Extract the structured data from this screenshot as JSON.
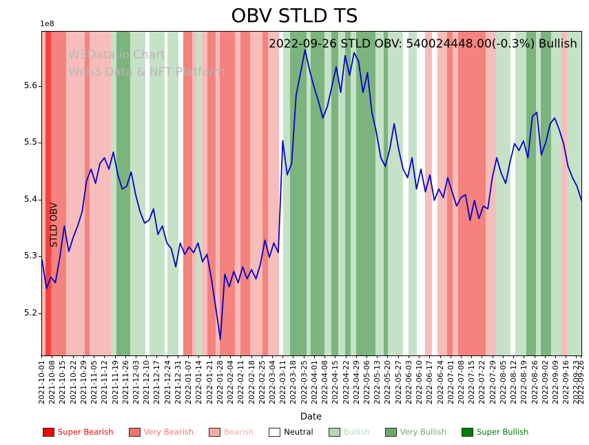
{
  "figure": {
    "title": "OBV STLD TS",
    "annotation": "2022-09-26 STLD OBV: 540024448.00(-0.3%) Bullish",
    "watermark_line1": "W3Data.io Chart",
    "watermark_line2": "Web3 Data & NFT Platform",
    "xlabel": "Date",
    "ylabel": "STLD OBV",
    "y_offset_label": "1e8"
  },
  "legend": {
    "items": [
      {
        "label": "Super Bearish",
        "color": "#fe0000"
      },
      {
        "label": "Very Bearish",
        "color": "#f4726d"
      },
      {
        "label": "Bearish",
        "color": "#f6aba7"
      },
      {
        "label": "Neutral",
        "color": "#ffffff",
        "text_color": "#000000"
      },
      {
        "label": "Bullish",
        "color": "#b4d8b4"
      },
      {
        "label": "Very Bullish",
        "color": "#6aab6c"
      },
      {
        "label": "Super Bullish",
        "color": "#007e00"
      }
    ]
  },
  "chart_data": {
    "type": "line",
    "title": "OBV STLD TS",
    "xlabel": "Date",
    "ylabel": "STLD OBV",
    "y_scale_factor": "1e8",
    "grid": false,
    "legend_position": "bottom",
    "ylim": [
      5.127,
      5.697
    ],
    "yticks": [
      5.2,
      5.3,
      5.4,
      5.5,
      5.6
    ],
    "x_start_date": "2021-10-01",
    "x_end_date": "2022-09-26",
    "x_total_days": 360,
    "xtick_labels": [
      "2021-10-01",
      "2021-10-08",
      "2021-10-15",
      "2021-10-22",
      "2021-10-29",
      "2021-11-05",
      "2021-11-12",
      "2021-11-19",
      "2021-11-26",
      "2021-12-03",
      "2021-12-10",
      "2021-12-17",
      "2021-12-24",
      "2021-12-31",
      "2022-01-07",
      "2022-01-14",
      "2022-01-21",
      "2022-01-28",
      "2022-02-04",
      "2022-02-11",
      "2022-02-18",
      "2022-02-25",
      "2022-03-04",
      "2022-03-11",
      "2022-03-18",
      "2022-03-25",
      "2022-04-01",
      "2022-04-08",
      "2022-04-15",
      "2022-04-22",
      "2022-04-29",
      "2022-05-06",
      "2022-05-13",
      "2022-05-20",
      "2022-05-27",
      "2022-06-03",
      "2022-06-10",
      "2022-06-17",
      "2022-06-24",
      "2022-07-01",
      "2022-07-08",
      "2022-07-15",
      "2022-07-22",
      "2022-07-29",
      "2022-08-05",
      "2022-08-12",
      "2022-08-19",
      "2022-08-26",
      "2022-09-02",
      "2022-09-09",
      "2022-09-16",
      "2022-09-23",
      "2022-09-26"
    ],
    "latest": {
      "date": "2022-09-26",
      "value": 540024448.0,
      "change_pct": -0.3,
      "signal": "Bullish"
    },
    "series": [
      {
        "name": "STLD OBV",
        "color": "#0000cd",
        "sampling": "evenly spaced 2021-10-01 to 2022-09-26",
        "values_1e8": [
          5.295,
          5.245,
          5.265,
          5.255,
          5.3,
          5.355,
          5.31,
          5.335,
          5.355,
          5.38,
          5.435,
          5.455,
          5.43,
          5.465,
          5.475,
          5.455,
          5.485,
          5.445,
          5.42,
          5.425,
          5.45,
          5.41,
          5.38,
          5.36,
          5.365,
          5.385,
          5.34,
          5.355,
          5.325,
          5.315,
          5.283,
          5.325,
          5.305,
          5.318,
          5.308,
          5.325,
          5.292,
          5.305,
          5.262,
          5.21,
          5.155,
          5.27,
          5.248,
          5.275,
          5.255,
          5.283,
          5.262,
          5.278,
          5.262,
          5.288,
          5.33,
          5.3,
          5.325,
          5.308,
          5.505,
          5.445,
          5.465,
          5.585,
          5.625,
          5.665,
          5.63,
          5.6,
          5.575,
          5.545,
          5.565,
          5.6,
          5.635,
          5.59,
          5.655,
          5.62,
          5.66,
          5.645,
          5.59,
          5.625,
          5.555,
          5.52,
          5.475,
          5.46,
          5.49,
          5.535,
          5.49,
          5.455,
          5.44,
          5.475,
          5.42,
          5.455,
          5.415,
          5.445,
          5.4,
          5.42,
          5.405,
          5.44,
          5.415,
          5.39,
          5.405,
          5.41,
          5.365,
          5.4,
          5.368,
          5.39,
          5.385,
          5.44,
          5.475,
          5.448,
          5.43,
          5.468,
          5.5,
          5.488,
          5.505,
          5.475,
          5.548,
          5.555,
          5.48,
          5.502,
          5.535,
          5.545,
          5.525,
          5.5,
          5.46,
          5.44,
          5.425,
          5.40024448
        ]
      }
    ],
    "band_colors": {
      "super_bearish": "#f94040",
      "very_bearish": "#f5827d",
      "bearish": "#f7bdba",
      "neutral": "#ffffff",
      "bullish": "#c6e2c6",
      "very_bullish": "#7cb47d",
      "super_bullish": "#2e8b2e"
    },
    "bands": [
      [
        0.0,
        0.007,
        "bearish"
      ],
      [
        0.007,
        0.017,
        "super_bearish"
      ],
      [
        0.017,
        0.045,
        "very_bearish"
      ],
      [
        0.045,
        0.079,
        "bearish"
      ],
      [
        0.079,
        0.088,
        "very_bearish"
      ],
      [
        0.088,
        0.128,
        "bearish"
      ],
      [
        0.128,
        0.138,
        "bullish"
      ],
      [
        0.138,
        0.163,
        "very_bullish"
      ],
      [
        0.163,
        0.192,
        "bullish"
      ],
      [
        0.192,
        0.199,
        "neutral"
      ],
      [
        0.199,
        0.227,
        "bullish"
      ],
      [
        0.227,
        0.232,
        "neutral"
      ],
      [
        0.232,
        0.253,
        "bullish"
      ],
      [
        0.253,
        0.262,
        "neutral"
      ],
      [
        0.262,
        0.278,
        "very_bearish"
      ],
      [
        0.278,
        0.286,
        "bearish"
      ],
      [
        0.286,
        0.296,
        "bullish"
      ],
      [
        0.296,
        0.306,
        "bearish"
      ],
      [
        0.306,
        0.322,
        "very_bearish"
      ],
      [
        0.322,
        0.329,
        "bearish"
      ],
      [
        0.329,
        0.358,
        "very_bearish"
      ],
      [
        0.358,
        0.368,
        "bearish"
      ],
      [
        0.368,
        0.386,
        "very_bearish"
      ],
      [
        0.386,
        0.409,
        "bearish"
      ],
      [
        0.409,
        0.419,
        "very_bearish"
      ],
      [
        0.419,
        0.439,
        "bearish"
      ],
      [
        0.439,
        0.447,
        "neutral"
      ],
      [
        0.447,
        0.46,
        "bullish"
      ],
      [
        0.46,
        0.49,
        "very_bullish"
      ],
      [
        0.49,
        0.498,
        "bullish"
      ],
      [
        0.498,
        0.524,
        "very_bullish"
      ],
      [
        0.524,
        0.536,
        "bullish"
      ],
      [
        0.536,
        0.549,
        "very_bullish"
      ],
      [
        0.549,
        0.562,
        "bullish"
      ],
      [
        0.562,
        0.572,
        "very_bullish"
      ],
      [
        0.572,
        0.582,
        "bullish"
      ],
      [
        0.582,
        0.618,
        "very_bullish"
      ],
      [
        0.618,
        0.633,
        "bullish"
      ],
      [
        0.633,
        0.641,
        "very_bullish"
      ],
      [
        0.641,
        0.669,
        "bullish"
      ],
      [
        0.669,
        0.679,
        "neutral"
      ],
      [
        0.679,
        0.695,
        "bullish"
      ],
      [
        0.695,
        0.71,
        "neutral"
      ],
      [
        0.71,
        0.723,
        "bearish"
      ],
      [
        0.723,
        0.733,
        "neutral"
      ],
      [
        0.733,
        0.751,
        "bearish"
      ],
      [
        0.751,
        0.761,
        "very_bearish"
      ],
      [
        0.761,
        0.771,
        "bearish"
      ],
      [
        0.771,
        0.822,
        "very_bearish"
      ],
      [
        0.822,
        0.842,
        "bearish"
      ],
      [
        0.842,
        0.868,
        "bullish"
      ],
      [
        0.868,
        0.877,
        "neutral"
      ],
      [
        0.877,
        0.898,
        "bullish"
      ],
      [
        0.898,
        0.916,
        "very_bullish"
      ],
      [
        0.916,
        0.925,
        "bullish"
      ],
      [
        0.925,
        0.944,
        "very_bullish"
      ],
      [
        0.944,
        0.963,
        "bullish"
      ],
      [
        0.963,
        0.973,
        "bearish"
      ],
      [
        0.973,
        1.0,
        "bullish"
      ]
    ]
  }
}
